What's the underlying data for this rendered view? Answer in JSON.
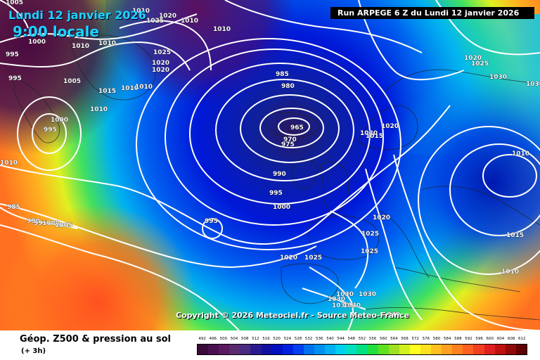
{
  "header": {
    "date": "Lundi 12 janvier 2026",
    "time": "9:00 locale",
    "run": "Run ARPEGE 6 Z du Lundi 12 janvier 2026"
  },
  "copyright": "Copyright © 2026 Meteociel.fr - Source Meteo-France",
  "legend": {
    "title": "Géop. Z500 & pression au sol",
    "subtitle": "(+ 3h)",
    "scale_values": [
      "492",
      "496",
      "500",
      "504",
      "508",
      "512",
      "516",
      "520",
      "524",
      "528",
      "532",
      "536",
      "540",
      "544",
      "548",
      "552",
      "556",
      "560",
      "564",
      "568",
      "572",
      "576",
      "580",
      "584",
      "588",
      "592",
      "596",
      "600",
      "604",
      "608",
      "612"
    ],
    "scale_colors": [
      "#3a0a3a",
      "#4a1050",
      "#5a1a60",
      "#5a2a70",
      "#4a2a80",
      "#2a1a90",
      "#1010a0",
      "#0010c0",
      "#0020e0",
      "#0040f0",
      "#0070f0",
      "#0090f0",
      "#00b0f0",
      "#00d0f0",
      "#00e0c0",
      "#00e080",
      "#20e040",
      "#60e020",
      "#a0e020",
      "#d0f020",
      "#ffff20",
      "#ffe020",
      "#ffc020",
      "#ffa020",
      "#ff8020",
      "#ff6020",
      "#f04020",
      "#e02020",
      "#c01010",
      "#900808",
      "#600000"
    ]
  },
  "isobar_labels": [
    {
      "text": "1005"
    },
    {
      "text": "1010"
    },
    {
      "text": "1020"
    },
    {
      "text": "1025"
    },
    {
      "text": "1010"
    },
    {
      "text": "1000"
    },
    {
      "text": "1010"
    },
    {
      "text": "1010"
    },
    {
      "text": "1025"
    },
    {
      "text": "1020"
    },
    {
      "text": "1020"
    },
    {
      "text": "1010"
    },
    {
      "text": "995"
    },
    {
      "text": "995"
    },
    {
      "text": "1005"
    },
    {
      "text": "1015"
    },
    {
      "text": "1010"
    },
    {
      "text": "1010"
    },
    {
      "text": "1010"
    },
    {
      "text": "985"
    },
    {
      "text": "980"
    },
    {
      "text": "965"
    },
    {
      "text": "970"
    },
    {
      "text": "975"
    },
    {
      "text": "1000"
    },
    {
      "text": "995"
    },
    {
      "text": "1010"
    },
    {
      "text": "990"
    },
    {
      "text": "995"
    },
    {
      "text": "1000"
    },
    {
      "text": "995"
    },
    {
      "text": "985"
    },
    {
      "text": "990"
    },
    {
      "text": "995"
    },
    {
      "text": "1000"
    },
    {
      "text": "1005"
    },
    {
      "text": "1020"
    },
    {
      "text": "1015"
    },
    {
      "text": "1020"
    },
    {
      "text": "1020"
    },
    {
      "text": "1025"
    },
    {
      "text": "1020"
    },
    {
      "text": "1025"
    },
    {
      "text": "1025"
    },
    {
      "text": "1030"
    },
    {
      "text": "1030"
    },
    {
      "text": "1030"
    },
    {
      "text": "1030"
    },
    {
      "text": "1030"
    },
    {
      "text": "1030"
    },
    {
      "text": "1020"
    },
    {
      "text": "1025"
    },
    {
      "text": "1030"
    },
    {
      "text": "1030"
    },
    {
      "text": "1010"
    },
    {
      "text": "1015"
    },
    {
      "text": "1010"
    }
  ]
}
